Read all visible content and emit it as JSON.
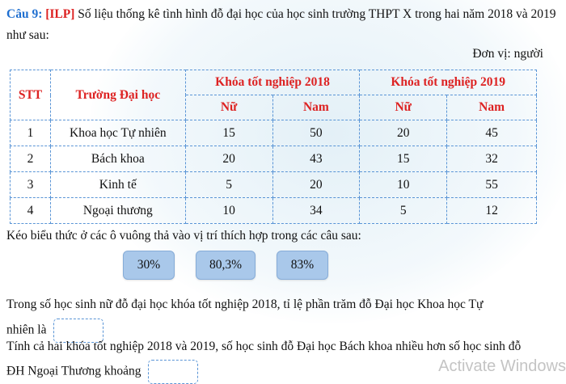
{
  "question": {
    "number": "Câu 9:",
    "tag": "[ILP]",
    "text": " Số liệu thống kê tình hình đỗ đại học của học sinh trường THPT X trong hai năm 2018 và 2019 như sau:"
  },
  "unit": "Đơn vị: người",
  "table": {
    "headers": {
      "stt": "STT",
      "school": "Trường Đại học",
      "year2018": "Khóa tốt nghiệp 2018",
      "year2019": "Khóa tốt nghiệp 2019",
      "female": "Nữ",
      "male": "Nam"
    },
    "rows": [
      {
        "stt": "1",
        "school": "Khoa học Tự nhiên",
        "f2018": "15",
        "m2018": "50",
        "f2019": "20",
        "m2019": "45"
      },
      {
        "stt": "2",
        "school": "Bách khoa",
        "f2018": "20",
        "m2018": "43",
        "f2019": "15",
        "m2019": "32"
      },
      {
        "stt": "3",
        "school": "Kinh tế",
        "f2018": "5",
        "m2018": "20",
        "f2019": "10",
        "m2019": "55"
      },
      {
        "stt": "4",
        "school": "Ngoại thương",
        "f2018": "10",
        "m2018": "34",
        "f2019": "5",
        "m2019": "12"
      }
    ]
  },
  "instruction": "Kéo biểu thức ở các ô vuông thả vào vị trí thích hợp trong các câu sau:",
  "options": [
    "30%",
    "80,3%",
    "83%"
  ],
  "sentence1": {
    "line1": "Trong số học sinh nữ đỗ đại học khóa tốt nghiệp 2018, tỉ lệ phần trăm đỗ Đại học Khoa học Tự",
    "line2": "nhiên là"
  },
  "sentence2": {
    "line1": "Tính cả hai khóa tốt nghiệp 2018 và 2019, số học sinh đỗ Đại học Bách khoa nhiều hơn số học sinh đỗ",
    "line2": "ĐH Ngoại Thương khoảng"
  },
  "watermark": "Activate Windows"
}
